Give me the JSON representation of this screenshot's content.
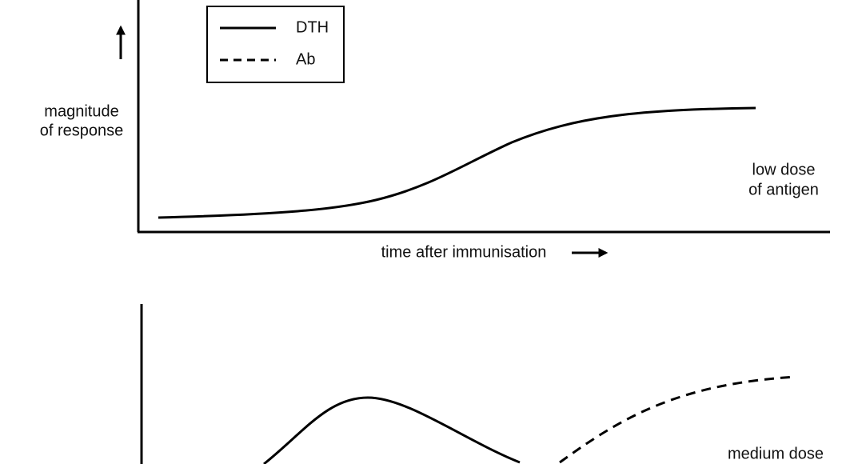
{
  "legend": {
    "items": [
      "DTH",
      "Ab"
    ]
  },
  "y_axis_label": [
    "magnitude",
    "of response"
  ],
  "x_axis_label": "time after immunisation",
  "panels": [
    {
      "label": [
        "low dose",
        "of antigen"
      ]
    },
    {
      "label": [
        "medium dose"
      ]
    }
  ]
}
